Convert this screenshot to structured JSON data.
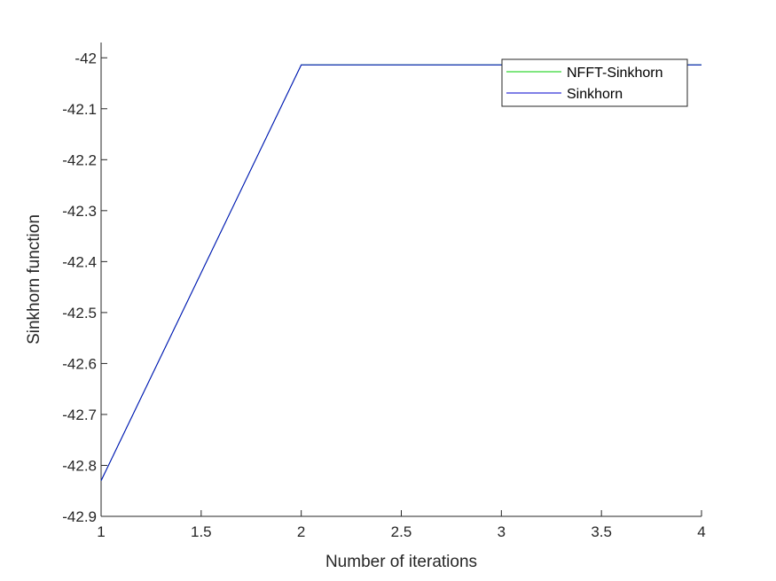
{
  "chart_data": {
    "type": "line",
    "xlabel": "Number of iterations",
    "ylabel": "Sinkhorn function",
    "xlim": [
      1,
      4
    ],
    "ylim": [
      -42.9,
      -41.97
    ],
    "x_ticks": [
      1,
      1.5,
      2,
      2.5,
      3,
      3.5,
      4
    ],
    "x_tick_labels": [
      "1",
      "1.5",
      "2",
      "2.5",
      "3",
      "3.5",
      "4"
    ],
    "y_ticks": [
      -42,
      -42.1,
      -42.2,
      -42.3,
      -42.4,
      -42.5,
      -42.6,
      -42.7,
      -42.8,
      -42.9
    ],
    "y_tick_labels": [
      "-42",
      "-42.1",
      "-42.2",
      "-42.3",
      "-42.4",
      "-42.5",
      "-42.6",
      "-42.7",
      "-42.8",
      "-42.9"
    ],
    "grid": false,
    "box": "right-open",
    "legend_position": "top-right",
    "series": [
      {
        "name": "NFFT-Sinkhorn",
        "color": "#00cc00",
        "x": [
          1,
          2,
          3,
          4
        ],
        "y": [
          -42.83,
          -42.014,
          -42.014,
          -42.014
        ]
      },
      {
        "name": "Sinkhorn",
        "color": "#0000cc",
        "x": [
          1,
          2,
          3,
          4
        ],
        "y": [
          -42.83,
          -42.014,
          -42.014,
          -42.014
        ]
      }
    ]
  }
}
